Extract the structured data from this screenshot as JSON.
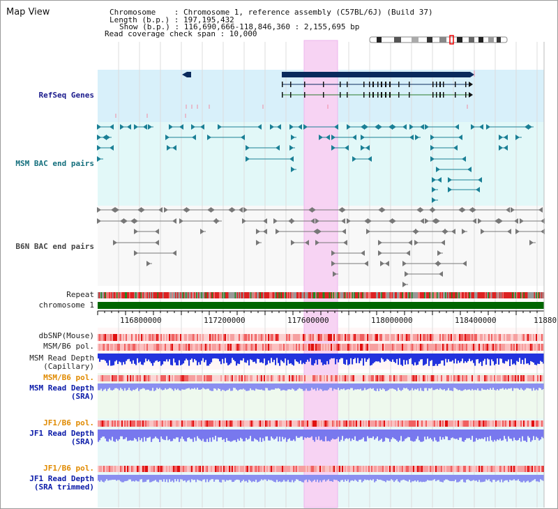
{
  "title": "Map View",
  "info": {
    "chromosome_label": "Chromosome    : Chromosome 1, reference assembly (C57BL/6J) (Build 37)",
    "length_label": "Length (b.p.) : 197,195,432",
    "show_label": "Show (b.p.) : 116,690,666-118,846,360 : 2,155,695 bp",
    "coverage_label": "Read coverage check span : 10,000"
  },
  "tracks": {
    "refseq": "RefSeq Genes",
    "msm_bac": "MSM BAC end pairs",
    "b6n_bac": "B6N BAC end pairs",
    "repeat": "Repeat",
    "chromosome": "chromosome 1",
    "dbsnp": "dbSNP(Mouse)",
    "msm_b6_pol": "MSM/B6 pol.",
    "msm_depth_cap_1": "MSM Read Depth",
    "msm_depth_cap_2": "(Capillary)",
    "msm_b6_pol_2": "MSM/B6 pol.",
    "msm_depth_sra_1": "MSM Read Depth",
    "msm_depth_sra_2": "(SRA)",
    "jf1_pol_1": "JF1/B6 pol.",
    "jf1_depth_1": "JF1 Read Depth",
    "jf1_depth_1b": "(SRA)",
    "jf1_pol_2": "JF1/B6 pol.",
    "jf1_depth_2": "JF1 Read Depth",
    "jf1_depth_2b": "(SRA trimmed)"
  },
  "axis": {
    "ticks": [
      "116800000",
      "117200000",
      "117600000",
      "118000000",
      "118400000",
      "11880"
    ]
  },
  "colors": {
    "refseq_bg": "#d8f0fa",
    "msm_bg": "#e2f8f8",
    "b6n_bg": "#f8f8f8",
    "highlight": "#f7d3f3",
    "chromosome": "#006600",
    "gene": "#0a2a5c",
    "msm_feature": "#1a7f95",
    "b6n_feature": "#777777",
    "depth_blue": "#2233dd",
    "depth_light": "#8a8ff0",
    "pol_red": "#ee1111"
  }
}
